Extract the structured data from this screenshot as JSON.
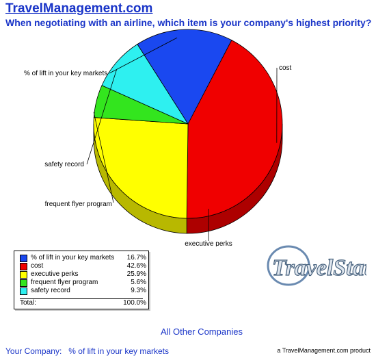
{
  "header": {
    "site_title": "TravelManagement.com",
    "question": "When negotiating with an airline, which item is your company's highest priority?"
  },
  "chart_data": {
    "type": "pie",
    "title": "When negotiating with an airline, which item is your company's highest priority?",
    "categories": [
      "% of lift in your key markets",
      "cost",
      "executive perks",
      "frequent flyer program",
      "safety record"
    ],
    "values": [
      16.7,
      42.6,
      25.9,
      5.6,
      9.3
    ],
    "total": 100.0,
    "colors": [
      "#1a48f0",
      "#f00000",
      "#ffff00",
      "#33e51e",
      "#2ef0f0"
    ],
    "legend_position": "bottom-left"
  },
  "legend": {
    "rows": [
      {
        "label": "% of lift in your key markets",
        "value": "16.7%",
        "color": "#1a48f0"
      },
      {
        "label": "cost",
        "value": "42.6%",
        "color": "#f00000"
      },
      {
        "label": "executive perks",
        "value": "25.9%",
        "color": "#ffff00"
      },
      {
        "label": "frequent flyer program",
        "value": "5.6%",
        "color": "#33e51e"
      },
      {
        "label": "safety record",
        "value": "9.3%",
        "color": "#2ef0f0"
      }
    ],
    "total_label": "Total:",
    "total_value": "100.0%"
  },
  "logo": {
    "text": "TravelStat"
  },
  "footer": {
    "group_label": "All Other Companies",
    "your_company_label": "Your Company:",
    "your_company_value": "% of lift in your key markets",
    "credit": "a TravelManagement.com product"
  }
}
